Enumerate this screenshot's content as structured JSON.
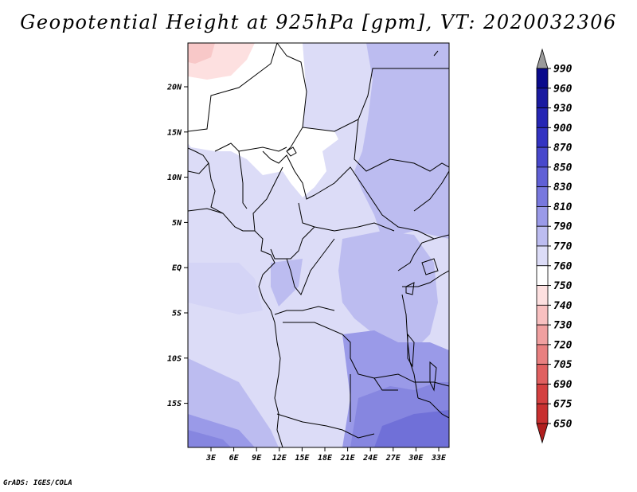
{
  "title": "Geopotential Height at 925hPa [gpm], VT: 2020032306",
  "credit": "GrADS: IGES/COLA",
  "map": {
    "variable": "Geopotential Height",
    "level": "925hPa",
    "units": "gpm",
    "valid_time": "2020032306",
    "lat_ticks": [
      "20N",
      "15N",
      "10N",
      "5N",
      "EQ",
      "5S",
      "10S",
      "15S"
    ],
    "lon_ticks": [
      "3E",
      "6E",
      "9E",
      "12E",
      "15E",
      "18E",
      "21E",
      "24E",
      "27E",
      "30E",
      "33E"
    ],
    "region": "Central Africa"
  },
  "colorbar": {
    "levels": [
      "990",
      "960",
      "930",
      "900",
      "870",
      "850",
      "830",
      "810",
      "790",
      "770",
      "760",
      "750",
      "740",
      "730",
      "720",
      "705",
      "690",
      "675",
      "650"
    ],
    "top_arrow_color": "#9b9b9b",
    "bottom_arrow_color": "#b01e1e",
    "colors": [
      "#0a0a8c",
      "#1a1aa0",
      "#2626b4",
      "#3333c2",
      "#4848cc",
      "#6060d6",
      "#7878de",
      "#9a9ae8",
      "#bcbcf0",
      "#dcdcf7",
      "#ffffff",
      "#fde0e0",
      "#f8c0c0",
      "#f0a0a0",
      "#e88080",
      "#e06060",
      "#d44040",
      "#c83030",
      "#b01e1e"
    ]
  }
}
